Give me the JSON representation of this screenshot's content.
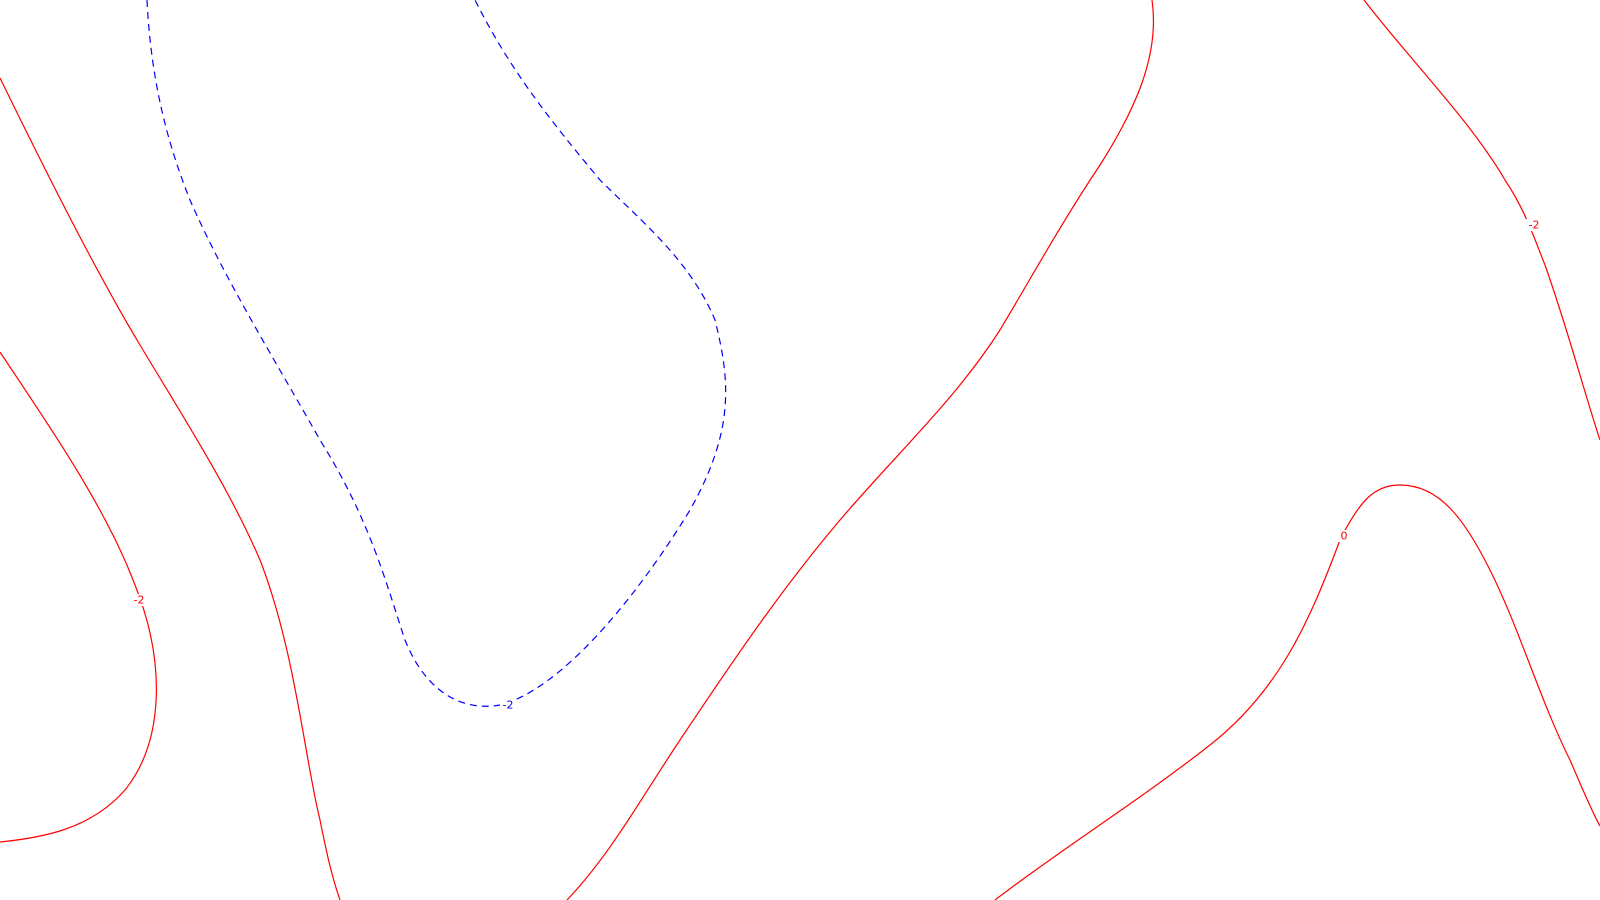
{
  "map": {
    "colors": {
      "positive": "#ff0000",
      "negative": "#0000ff",
      "background": "#ffffff"
    },
    "contours": [
      {
        "id": "red-left-outer",
        "label": "-2",
        "sign": "positive",
        "dashed": false
      },
      {
        "id": "red-left-inner",
        "label": "",
        "sign": "positive",
        "dashed": false
      },
      {
        "id": "blue-dashed",
        "label": "-2",
        "sign": "negative",
        "dashed": true
      },
      {
        "id": "red-center",
        "label": "",
        "sign": "positive",
        "dashed": false
      },
      {
        "id": "red-top-right",
        "label": "-2",
        "sign": "positive",
        "dashed": false
      },
      {
        "id": "red-bottom-right",
        "label": "0",
        "sign": "positive",
        "dashed": false
      }
    ]
  }
}
